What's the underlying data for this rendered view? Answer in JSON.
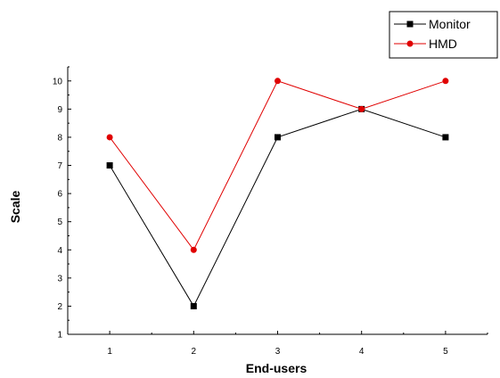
{
  "chart_data": {
    "type": "line",
    "title": "",
    "xlabel": "End-users",
    "ylabel": "Scale",
    "x": [
      1,
      2,
      3,
      4,
      5
    ],
    "xlim": [
      0.5,
      5.5
    ],
    "ylim": [
      1,
      10.5
    ],
    "xticks": [
      1,
      2,
      3,
      4,
      5
    ],
    "yticks": [
      1,
      2,
      3,
      4,
      5,
      6,
      7,
      8,
      9,
      10
    ],
    "grid": false,
    "legend_position": "top-right",
    "series": [
      {
        "name": "Monitor",
        "values": [
          7,
          2,
          8,
          9,
          8
        ],
        "color": "#000000",
        "marker": "square"
      },
      {
        "name": "HMD",
        "values": [
          8,
          4,
          10,
          9,
          10
        ],
        "color": "#e00000",
        "marker": "circle"
      }
    ]
  }
}
